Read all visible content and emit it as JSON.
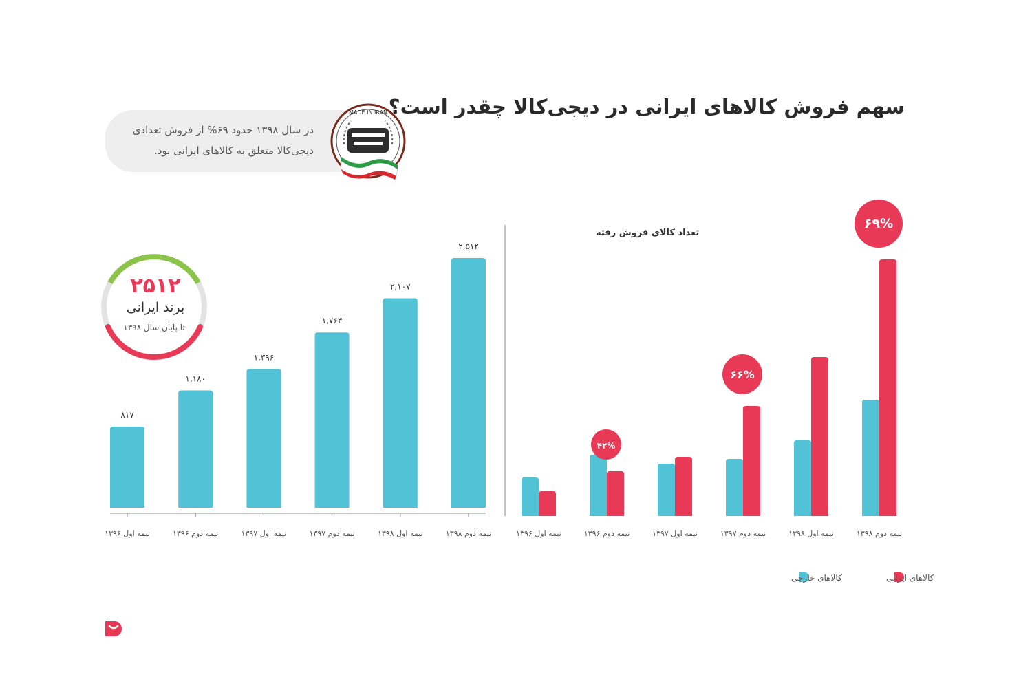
{
  "title": "سهم فروش کالاهای ایرانی در دیجی‌کالا چقدر است؟",
  "callout": {
    "line1": "در سال ۱۳۹۸ حدود ۶۹% از فروش تعدادی",
    "line2": "دیجی‌کالا متعلق به کالاهای ایرانی بود.",
    "badge_top": "MADE IN IRAN",
    "badge_logo": "ایران ساخت"
  },
  "brand_gauge": {
    "value": "۲۵۱۲",
    "label": "برند ایرانی",
    "sublabel": "تا پایان سال ۱۳۹۸"
  },
  "colors": {
    "iranian": "#e83a56",
    "foreign": "#52c3d6",
    "gauge_green": "#8cc34b",
    "axis": "#8a8a8a"
  },
  "chart_data": [
    {
      "type": "bar",
      "categories": [
        "نیمه اول ۱۳۹۶",
        "نیمه دوم ۱۳۹۶",
        "نیمه اول ۱۳۹۷",
        "نیمه دوم ۱۳۹۷",
        "نیمه اول ۱۳۹۸",
        "نیمه دوم ۱۳۹۸"
      ],
      "values": [
        817,
        1180,
        1396,
        1763,
        2107,
        2512
      ],
      "data_labels": [
        "۸۱۷",
        "۱,۱۸۰",
        "۱,۳۹۶",
        "۱,۷۶۳",
        "۲,۱۰۷",
        "۲,۵۱۲"
      ],
      "ylim": [
        0,
        2512
      ],
      "grid": false,
      "legend": "none"
    },
    {
      "type": "bar",
      "ylabel": "تعداد کالای فروش رفته",
      "categories": [
        "نیمه اول ۱۳۹۶",
        "نیمه دوم ۱۳۹۶",
        "نیمه اول ۱۳۹۷",
        "نیمه دوم ۱۳۹۷",
        "نیمه اول ۱۳۹۸",
        "نیمه دوم ۱۳۹۸"
      ],
      "series": [
        {
          "name": "کالاهای خارجی",
          "values": [
            56,
            89,
            76,
            83,
            110,
            169
          ]
        },
        {
          "name": "کالاهای ایرانی",
          "values": [
            36,
            65,
            86,
            160,
            231,
            373
          ]
        }
      ],
      "annotations": [
        {
          "category_index": 1,
          "text": "۴۲%"
        },
        {
          "category_index": 3,
          "text": "۶۶%"
        },
        {
          "category_index": 5,
          "text": "۶۹%"
        }
      ],
      "ylim": [
        0,
        420
      ],
      "grid": false,
      "legend": "bottom-right"
    }
  ]
}
